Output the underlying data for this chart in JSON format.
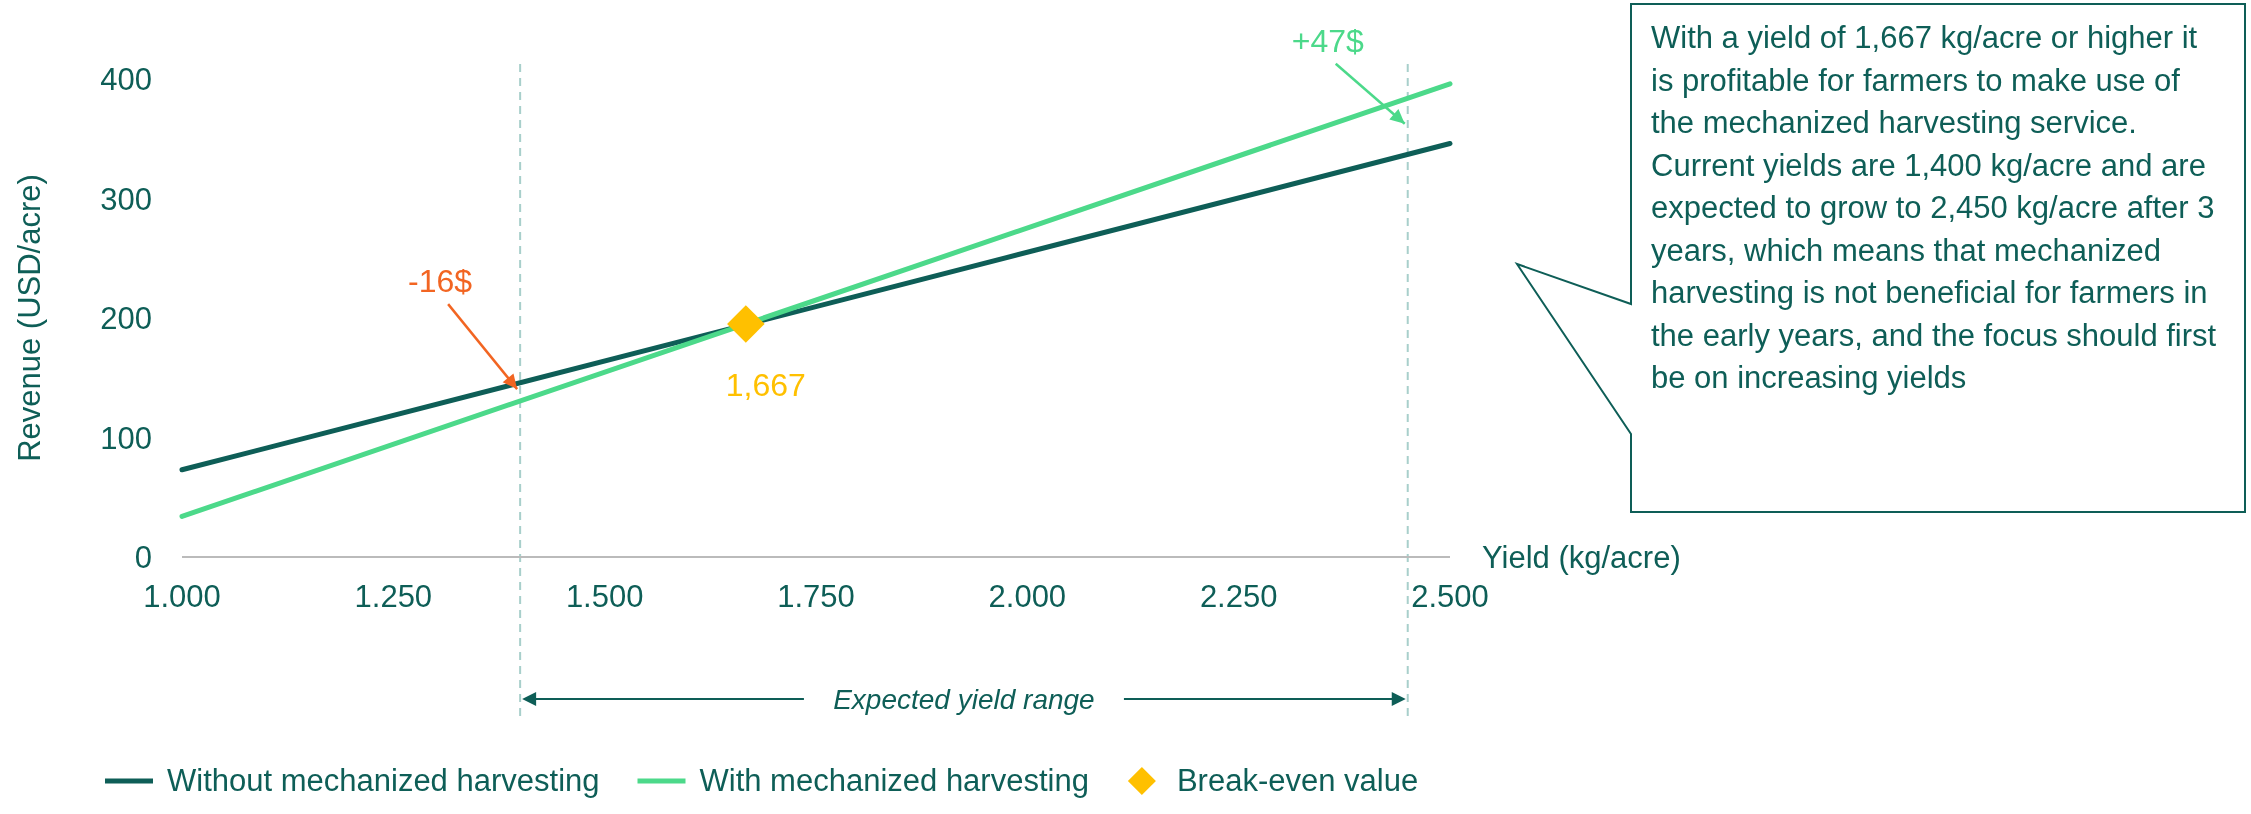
{
  "chart_data": {
    "type": "line",
    "xlabel": "Yield (kg/acre)",
    "ylabel": "Revenue (USD/acre)",
    "series": [
      {
        "name": "Without mechanized harvesting",
        "color": "#0e5e57",
        "x": [
          1000,
          2500
        ],
        "values": [
          73,
          346
        ]
      },
      {
        "name": "With mechanized harvesting",
        "color": "#4cd98a",
        "x": [
          1000,
          2500
        ],
        "values": [
          34,
          396
        ]
      },
      {
        "name": "Break-even value",
        "type": "scatter",
        "marker": "diamond",
        "color": "#ffc000",
        "x": [
          1667
        ],
        "values": [
          195
        ]
      }
    ],
    "xlim": [
      1000,
      2500
    ],
    "ylim": [
      0,
      400
    ],
    "xticks": [
      {
        "value": 1000,
        "label": "1.000"
      },
      {
        "value": 1250,
        "label": "1.250"
      },
      {
        "value": 1500,
        "label": "1.500"
      },
      {
        "value": 1750,
        "label": "1.750"
      },
      {
        "value": 2000,
        "label": "2.000"
      },
      {
        "value": 2250,
        "label": "2.250"
      },
      {
        "value": 2500,
        "label": "2.500"
      }
    ],
    "yticks": [
      0,
      100,
      200,
      300,
      400
    ],
    "ref_lines": [
      {
        "axis": "x",
        "value": 1400,
        "color": "#a8cfcb",
        "line_style": "dashed"
      },
      {
        "axis": "x",
        "value": 2450,
        "color": "#a8cfcb",
        "line_style": "dashed"
      }
    ],
    "annotations": [
      {
        "text": "-16$",
        "x": 1400,
        "y": 138
      },
      {
        "text": "+47$",
        "x": 2450,
        "y": 360
      },
      {
        "text": "1,667",
        "x": 1667,
        "y": 195
      },
      "Expected yield range",
      "With a yield of 1,667 kg/acre or higher it is profitable for farmers to make use of the mechanized harvesting service. Current yields are 1,400 kg/acre and are expected to grow to 2,450 kg/acre after 3 years, which means that mechanized harvesting is not beneficial for farmers in the early years, and the focus should first be on increasing yields"
    ],
    "grid": false,
    "legend": "bottom",
    "marker": "none",
    "line_style": "solid"
  }
}
